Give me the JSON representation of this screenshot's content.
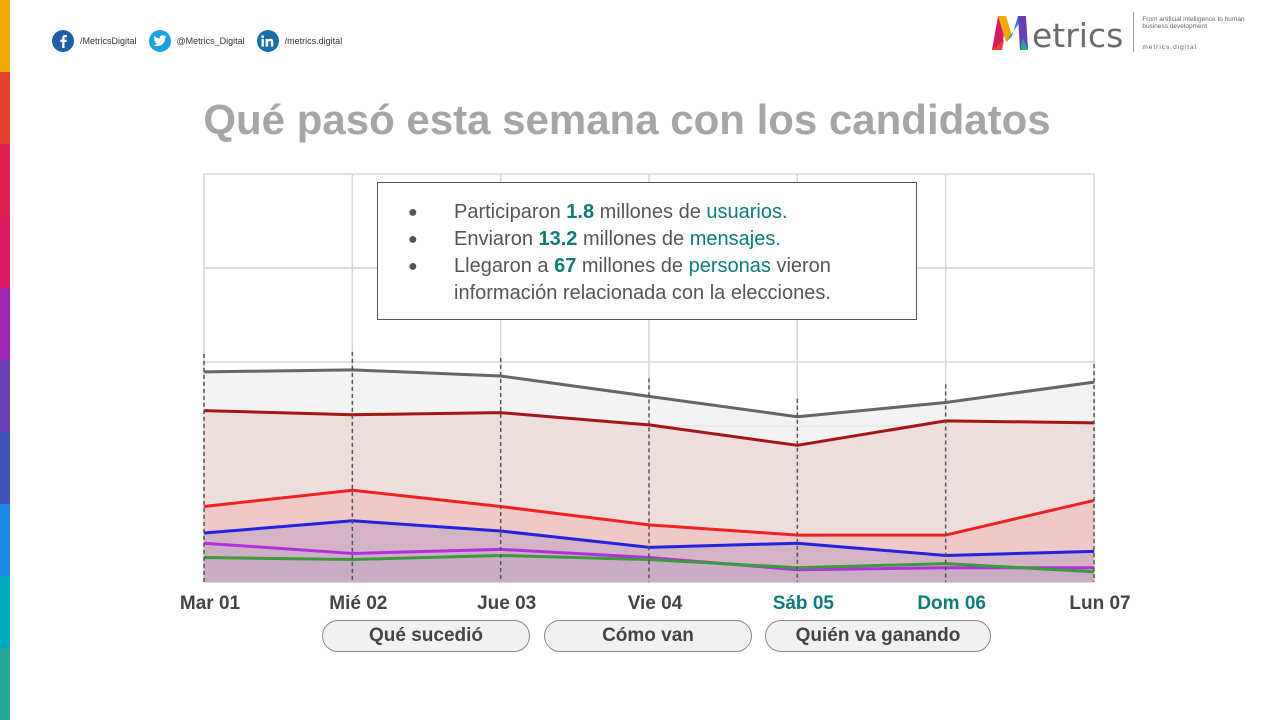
{
  "social": [
    {
      "icon": "facebook-icon",
      "text": "/MetricsDigital",
      "color": "#1f5fa8"
    },
    {
      "icon": "twitter-icon",
      "text": "@Metrics_Digital",
      "color": "#1da1e0"
    },
    {
      "icon": "linkedin-icon",
      "text": "/metrics.digital",
      "color": "#1a6ea8"
    }
  ],
  "logo": {
    "word": "etrics",
    "tagline": "From artificial intelligence to human business development",
    "url": "metrics.digital"
  },
  "title": "Qué pasó esta semana con los candidatos",
  "info": {
    "b1_pre": "Participaron ",
    "b1_num": "1.8",
    "b1_mid": " millones de ",
    "b1_word": "usuarios",
    "b1_end": ".",
    "b2_pre": "Enviaron ",
    "b2_num": "13.2",
    "b2_mid": " millones de ",
    "b2_word": "mensajes",
    "b2_end": ".",
    "b3_pre": "Llegaron a ",
    "b3_num": "67",
    "b3_mid": " millones de ",
    "b3_word": "personas",
    "b3_end": " vieron",
    "b3_line2": "información relacionada con la elecciones."
  },
  "buttons": {
    "b1": "Qué sucedió",
    "b2": "Cómo van",
    "b3": "Quién va ganando"
  },
  "chart_data": {
    "type": "area",
    "title": "",
    "xlabel": "",
    "ylabel": "",
    "ylim": [
      0,
      100
    ],
    "categories": [
      "Mar 01",
      "Mié 02",
      "Jue 03",
      "Vie 04",
      "Sáb 05",
      "Dom 06",
      "Lun 07"
    ],
    "highlight_categories": [
      "Sáb 05",
      "Dom 06"
    ],
    "series": [
      {
        "name": "gris",
        "color": "#666666",
        "fill": "#efefef",
        "values": [
          51.5,
          52,
          50.5,
          45.5,
          40.5,
          44,
          49
        ]
      },
      {
        "name": "rojo oscuro",
        "color": "#a51515",
        "fill": "#ecd6d6",
        "values": [
          42,
          41,
          41.5,
          38.5,
          33.5,
          39.5,
          39
        ]
      },
      {
        "name": "rojo",
        "color": "#ee2222",
        "fill": "#f2c0c0",
        "values": [
          18.5,
          22.5,
          18.5,
          14,
          11.5,
          11.5,
          20
        ]
      },
      {
        "name": "azul",
        "color": "#2323dd",
        "fill": "#c9acc4",
        "values": [
          12,
          15,
          12.5,
          8.5,
          9.5,
          6.5,
          7.5
        ]
      },
      {
        "name": "morado",
        "color": "#b22fe0",
        "fill": "#c9acc4",
        "values": [
          9.5,
          7,
          8,
          6,
          3,
          3.5,
          3.5
        ]
      },
      {
        "name": "verde",
        "color": "#3b9a3b",
        "fill": "#c9acc4",
        "values": [
          6,
          5.5,
          6.5,
          5.5,
          3.5,
          4.5,
          2.5
        ]
      }
    ]
  },
  "colors": {
    "accent": "#0f7a78",
    "title": "#a6a6a6",
    "strip": [
      "#f2a900",
      "#e6432e",
      "#e01f4f",
      "#d81b60",
      "#9c27b0",
      "#6a3fb5",
      "#3f51b5",
      "#1e88e5",
      "#00acc1",
      "#26a69a"
    ]
  }
}
